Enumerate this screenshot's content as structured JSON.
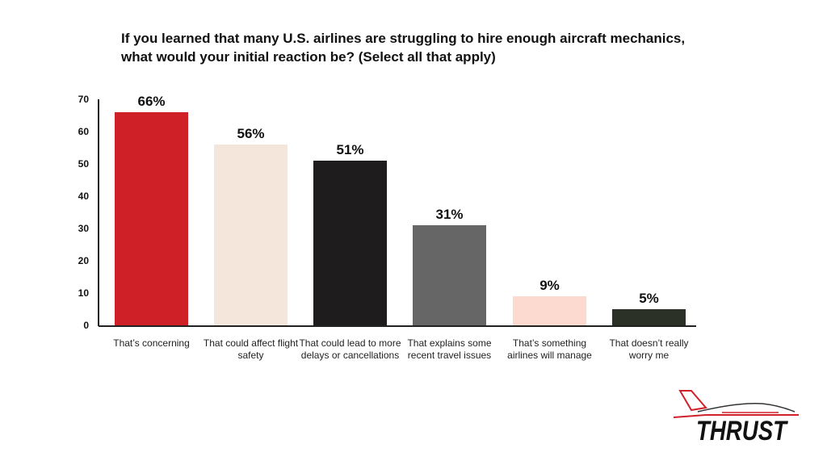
{
  "chart_data": {
    "type": "bar",
    "title": "If you learned that many U.S. airlines are struggling to hire enough aircraft mechanics, what would your initial reaction be? (Select all that apply)",
    "categories": [
      "That's concerning",
      "That could affect flight safety",
      "That could lead to more delays or cancellations",
      "That explains some recent travel issues",
      "That's something airlines will manage",
      "That doesn't really worry me"
    ],
    "values": [
      66,
      56,
      51,
      31,
      9,
      5
    ],
    "data_labels": [
      "66%",
      "56%",
      "51%",
      "31%",
      "9%",
      "5%"
    ],
    "colors": [
      "#cf2027",
      "#f4e6db",
      "#1f1c1d",
      "#666666",
      "#fcdad0",
      "#2b3127"
    ],
    "yticks": [
      "0",
      "10",
      "20",
      "30",
      "40",
      "50",
      "60",
      "70"
    ],
    "ylim": [
      0,
      70
    ],
    "xlabel": "",
    "ylabel": "",
    "grid": false
  },
  "logo": {
    "text": "THRUST"
  }
}
